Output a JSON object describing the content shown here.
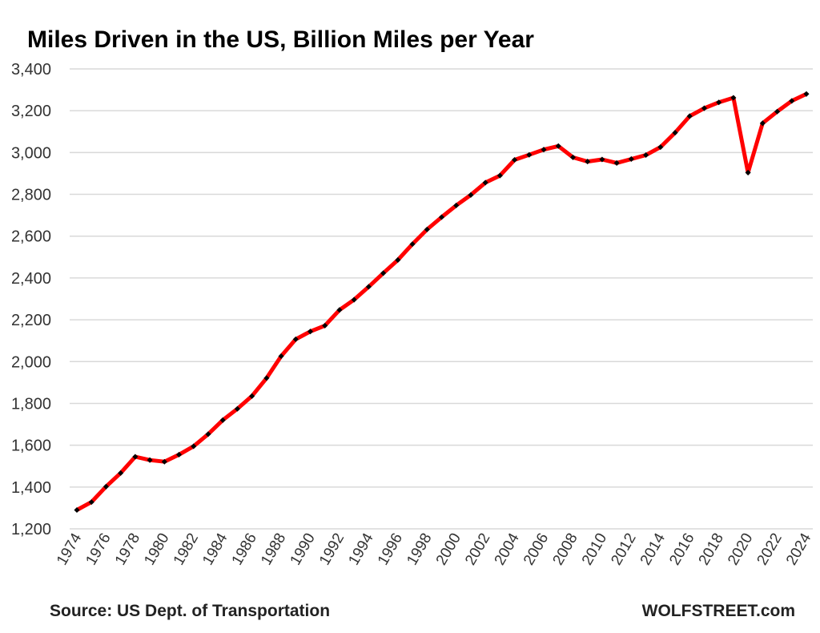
{
  "chart_data": {
    "type": "line",
    "title": "Miles Driven in the US, Billion Miles per Year",
    "source": "Source: US Dept. of Transportation",
    "watermark": "WOLFSTREET.com",
    "xlabel": "",
    "ylabel": "",
    "ylim": [
      1200,
      3400
    ],
    "yticks": [
      1200,
      1400,
      1600,
      1800,
      2000,
      2200,
      2400,
      2600,
      2800,
      3000,
      3200,
      3400
    ],
    "xlim": [
      1974,
      2024
    ],
    "xticks": [
      1974,
      1976,
      1978,
      1980,
      1982,
      1984,
      1986,
      1988,
      1990,
      1992,
      1994,
      1996,
      1998,
      2000,
      2002,
      2004,
      2006,
      2008,
      2010,
      2012,
      2014,
      2016,
      2018,
      2020,
      2022,
      2024
    ],
    "grid": "horizontal",
    "line_color": "#ff0000",
    "marker_color": "#000000",
    "x": [
      1974,
      1975,
      1976,
      1977,
      1978,
      1979,
      1980,
      1981,
      1982,
      1983,
      1984,
      1985,
      1986,
      1987,
      1988,
      1989,
      1990,
      1991,
      1992,
      1993,
      1994,
      1995,
      1996,
      1997,
      1998,
      1999,
      2000,
      2001,
      2002,
      2003,
      2004,
      2005,
      2006,
      2007,
      2008,
      2009,
      2010,
      2011,
      2012,
      2013,
      2014,
      2015,
      2016,
      2017,
      2018,
      2019,
      2020,
      2021,
      2022,
      2023,
      2024
    ],
    "values": [
      1290,
      1328,
      1402,
      1467,
      1545,
      1529,
      1521,
      1555,
      1595,
      1653,
      1720,
      1774,
      1835,
      1921,
      2026,
      2107,
      2144,
      2172,
      2247,
      2296,
      2358,
      2423,
      2486,
      2562,
      2632,
      2691,
      2747,
      2797,
      2856,
      2890,
      2965,
      2989,
      3014,
      3031,
      2977,
      2957,
      2967,
      2950,
      2969,
      2988,
      3026,
      3095,
      3174,
      3212,
      3240,
      3262,
      2904,
      3140,
      3196,
      3247,
      3280
    ]
  }
}
